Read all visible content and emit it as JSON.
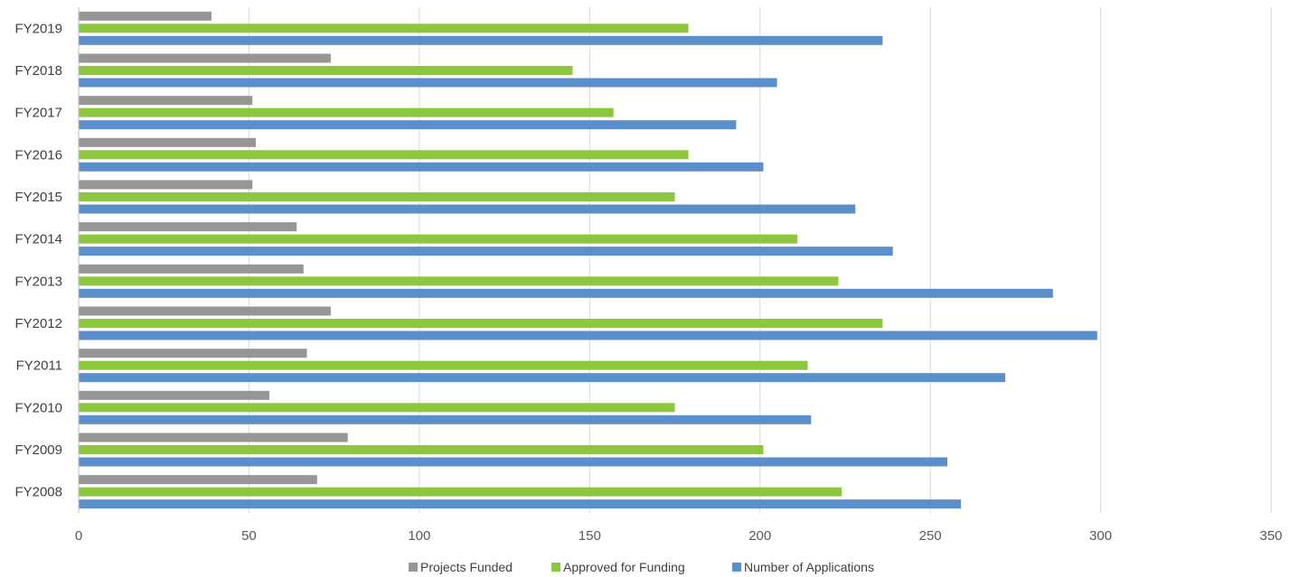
{
  "chart_data": {
    "type": "bar",
    "orientation": "horizontal",
    "categories": [
      "FY2019",
      "FY2018",
      "FY2017",
      "FY2016",
      "FY2015",
      "FY2014",
      "FY2013",
      "FY2012",
      "FY2011",
      "FY2010",
      "FY2009",
      "FY2008"
    ],
    "series": [
      {
        "name": "Projects Funded",
        "color": "#969696",
        "values": [
          39,
          74,
          51,
          52,
          51,
          64,
          66,
          74,
          67,
          56,
          79,
          70
        ]
      },
      {
        "name": "Approved for Funding",
        "color": "#8DC63F",
        "values": [
          179,
          145,
          157,
          179,
          175,
          211,
          223,
          236,
          214,
          175,
          201,
          224
        ]
      },
      {
        "name": "Number of Applications",
        "color": "#5B8FCB",
        "values": [
          236,
          205,
          193,
          201,
          228,
          239,
          286,
          299,
          272,
          215,
          255,
          259
        ]
      }
    ],
    "xlim": [
      0,
      350
    ],
    "xticks": [
      0,
      50,
      100,
      150,
      200,
      250,
      300,
      350
    ],
    "grid": "vertical",
    "legend_position": "bottom"
  }
}
